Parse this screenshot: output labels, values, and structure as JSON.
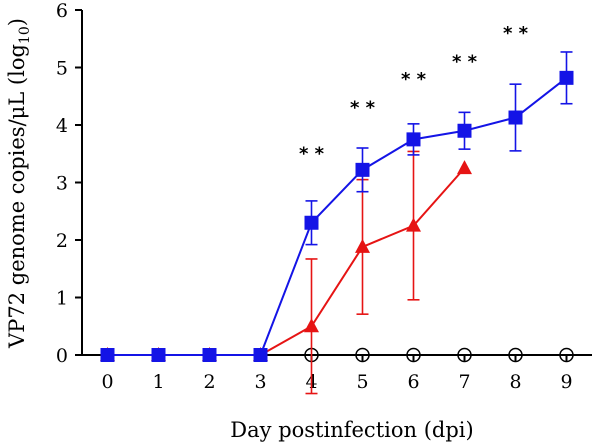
{
  "chart_data": {
    "type": "line",
    "xlabel": "Day postinfection (dpi)",
    "ylabel_main": "VP72 genome copies/μL (log",
    "ylabel_sub": "10",
    "ylabel_end": ")",
    "xlim": [
      -0.5,
      9.5
    ],
    "ylim": [
      0,
      6
    ],
    "x_ticks": [
      0,
      1,
      2,
      3,
      4,
      5,
      6,
      7,
      8,
      9
    ],
    "y_ticks": [
      0,
      1,
      2,
      3,
      4,
      5,
      6
    ],
    "grid": false,
    "legend": "none",
    "series": [
      {
        "marker": "square",
        "color": "#1414e6",
        "x": [
          0,
          1,
          2,
          3,
          4,
          5,
          6,
          7,
          8,
          9
        ],
        "y": [
          0,
          0,
          0,
          0,
          2.3,
          3.22,
          3.75,
          3.9,
          4.13,
          4.82
        ],
        "err": [
          0,
          0,
          0,
          0,
          0.38,
          0.38,
          0.27,
          0.32,
          0.58,
          0.45
        ]
      },
      {
        "marker": "triangle",
        "color": "#e61414",
        "x": [
          0,
          1,
          2,
          3,
          4,
          5,
          6,
          7
        ],
        "y": [
          0,
          0,
          0,
          0,
          0.5,
          1.88,
          2.25,
          3.25
        ],
        "err": [
          0,
          0,
          0,
          0,
          1.17,
          1.17,
          1.29,
          0
        ]
      },
      {
        "marker": "open-circle",
        "color": "#000000",
        "x": [
          4,
          5,
          6,
          7,
          8,
          9
        ],
        "y": [
          0,
          0,
          0,
          0,
          0,
          0
        ],
        "err": [
          0,
          0,
          0,
          0,
          0,
          0
        ]
      }
    ],
    "annotations": [
      {
        "x": 4,
        "y": 3.4,
        "text": "* *"
      },
      {
        "x": 5,
        "y": 4.2,
        "text": "* *"
      },
      {
        "x": 6,
        "y": 4.7,
        "text": "* *"
      },
      {
        "x": 7,
        "y": 5.0,
        "text": "* *"
      },
      {
        "x": 8,
        "y": 5.5,
        "text": "* *"
      }
    ]
  }
}
